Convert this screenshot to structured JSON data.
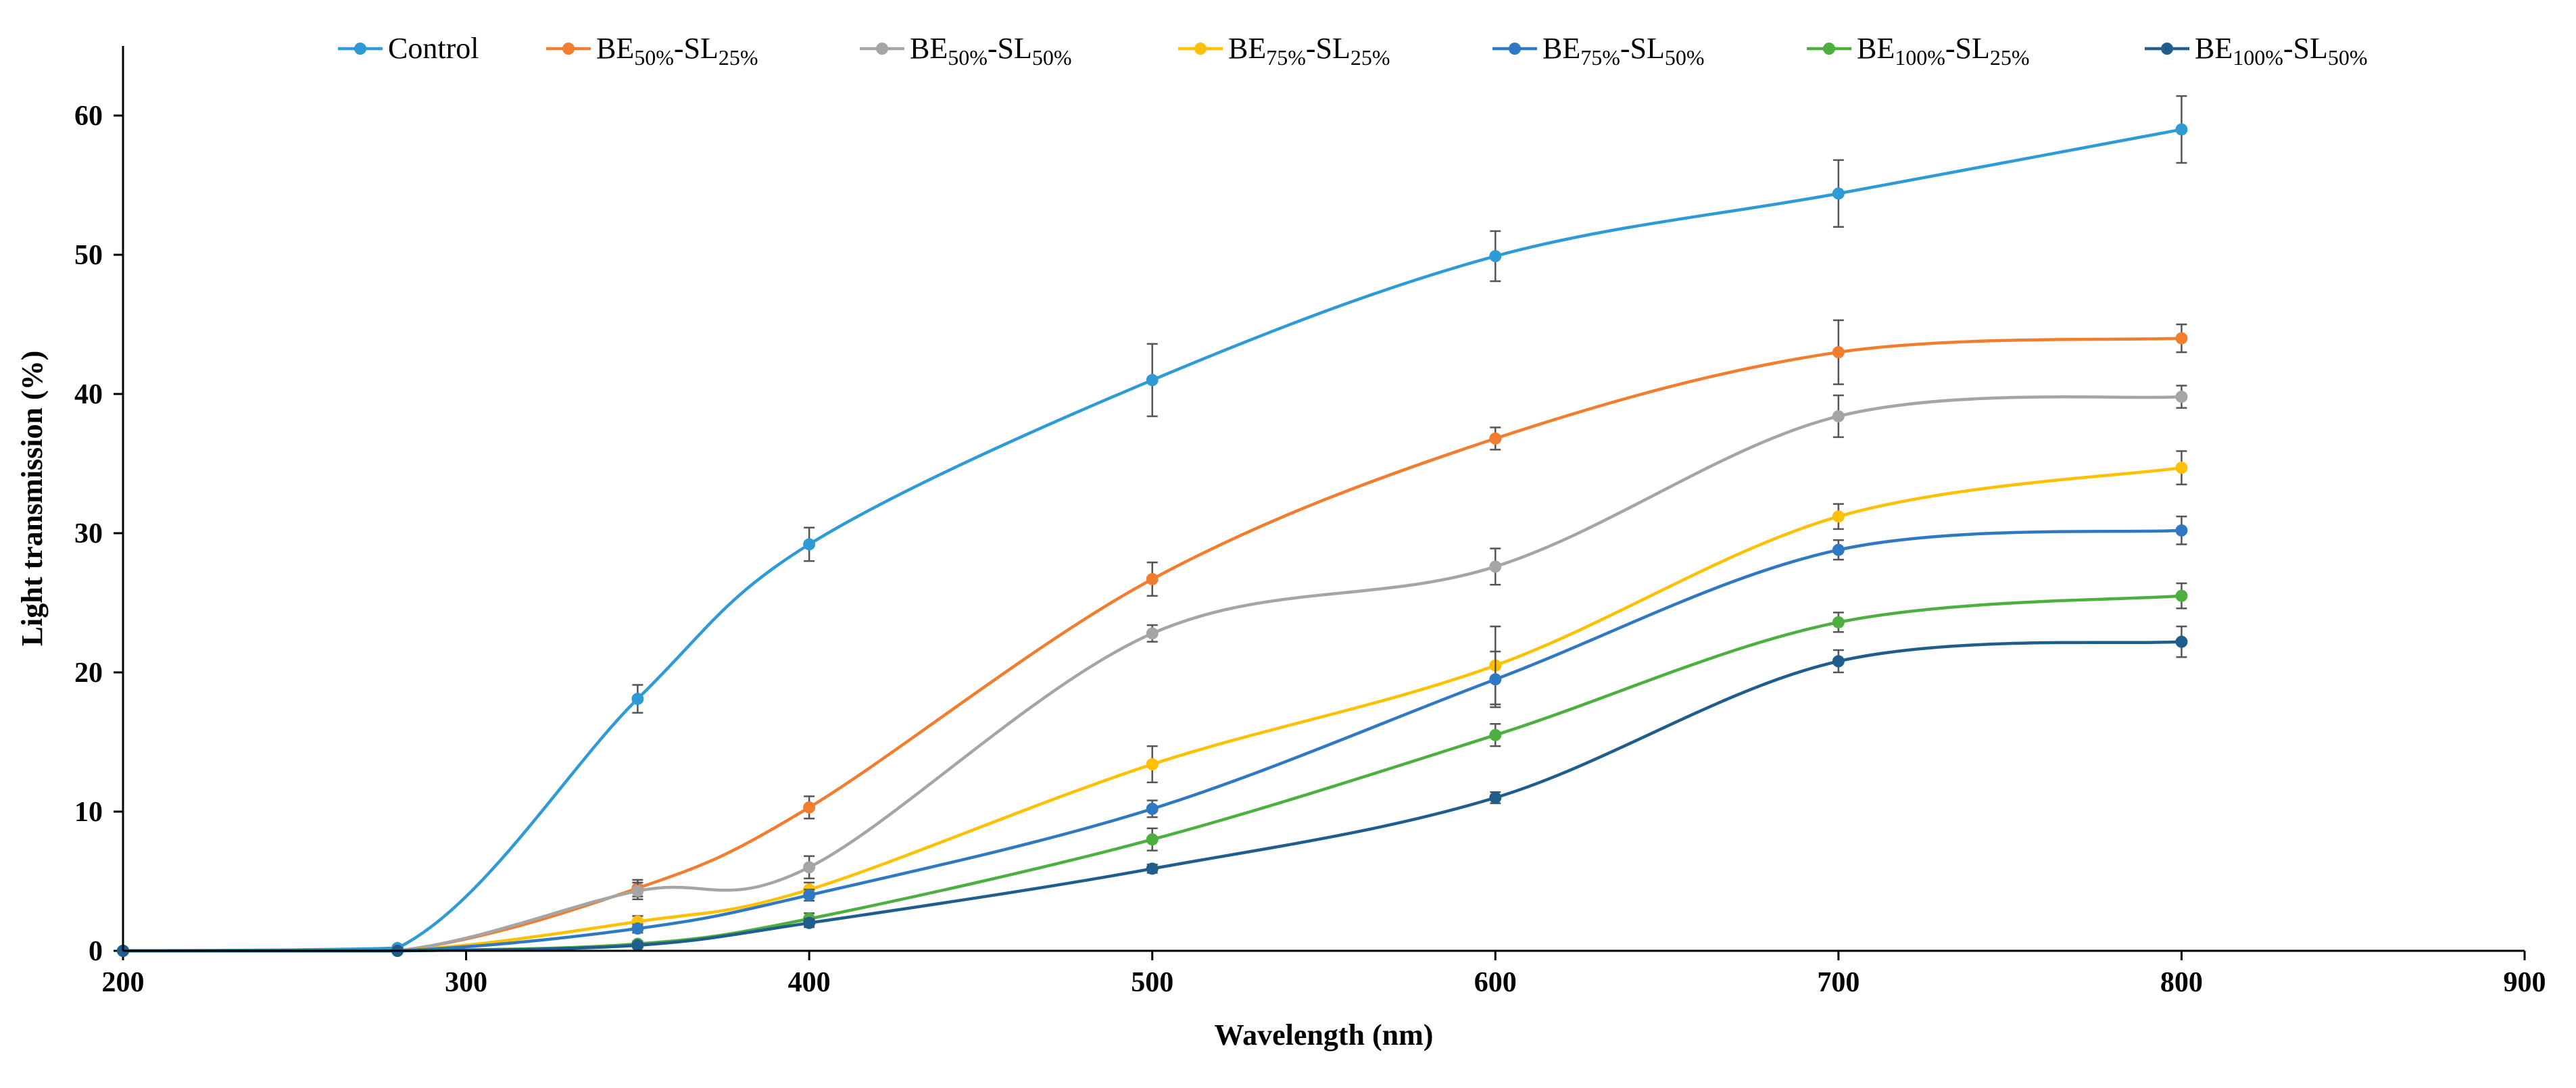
{
  "chart_data": {
    "type": "line",
    "title": "",
    "xlabel": "Wavelength (nm)",
    "ylabel": "Light transmission (%)",
    "xlim": [
      200,
      900
    ],
    "ylim": [
      0,
      65
    ],
    "xticks": [
      200,
      300,
      400,
      500,
      600,
      700,
      800,
      900
    ],
    "yticks": [
      0,
      10,
      20,
      30,
      40,
      50,
      60
    ],
    "legend_position": "top",
    "x": [
      200,
      280,
      350,
      400,
      500,
      600,
      700,
      800
    ],
    "series": [
      {
        "name": "Control",
        "color": "#2E9BD6",
        "legend": {
          "base": "Control",
          "parts": []
        },
        "values": [
          0,
          0.2,
          18.1,
          29.2,
          41.0,
          49.9,
          54.4,
          59.0
        ],
        "errors": [
          0,
          0,
          1.0,
          1.2,
          2.6,
          1.8,
          2.4,
          2.4
        ]
      },
      {
        "name": "BE50%-SL25%",
        "color": "#F37D2E",
        "legend": {
          "base": "BE",
          "parts": [
            {
              "sub": "50%",
              "text": "-SL"
            },
            {
              "sub": "25%",
              "text": ""
            }
          ]
        },
        "values": [
          0,
          0,
          4.5,
          10.3,
          26.7,
          36.8,
          43.0,
          44.0
        ],
        "errors": [
          0,
          0,
          0.6,
          0.8,
          1.2,
          0.8,
          2.3,
          1.0
        ]
      },
      {
        "name": "BE50%-SL50%",
        "color": "#A5A5A5",
        "legend": {
          "base": "BE",
          "parts": [
            {
              "sub": "50%",
              "text": "-SL"
            },
            {
              "sub": "50%",
              "text": ""
            }
          ]
        },
        "values": [
          0,
          0,
          4.3,
          6.0,
          22.8,
          27.6,
          38.4,
          39.8
        ],
        "errors": [
          0,
          0,
          0.6,
          0.8,
          0.6,
          1.3,
          1.5,
          0.8
        ]
      },
      {
        "name": "BE75%-SL25%",
        "color": "#FFC000",
        "legend": {
          "base": "BE",
          "parts": [
            {
              "sub": "75%",
              "text": "-SL"
            },
            {
              "sub": "25%",
              "text": ""
            }
          ]
        },
        "values": [
          0,
          0,
          2.1,
          4.4,
          13.4,
          20.5,
          31.2,
          34.7
        ],
        "errors": [
          0,
          0,
          0.4,
          0.5,
          1.3,
          2.8,
          0.9,
          1.2
        ]
      },
      {
        "name": "BE75%-SL50%",
        "color": "#2F78C2",
        "legend": {
          "base": "BE",
          "parts": [
            {
              "sub": "75%",
              "text": "-SL"
            },
            {
              "sub": "50%",
              "text": ""
            }
          ]
        },
        "values": [
          0,
          0,
          1.6,
          4.0,
          10.2,
          19.5,
          28.8,
          30.2
        ],
        "errors": [
          0,
          0,
          0.3,
          0.4,
          0.6,
          2.0,
          0.7,
          1.0
        ]
      },
      {
        "name": "BE100%-SL25%",
        "color": "#4CAF3F",
        "legend": {
          "base": "BE",
          "parts": [
            {
              "sub": "100%",
              "text": "-SL"
            },
            {
              "sub": "25%",
              "text": ""
            }
          ]
        },
        "values": [
          0,
          0,
          0.5,
          2.3,
          8.0,
          15.5,
          23.6,
          25.5
        ],
        "errors": [
          0,
          0,
          0.2,
          0.4,
          0.8,
          0.8,
          0.7,
          0.9
        ]
      },
      {
        "name": "BE100%-SL50%",
        "color": "#1F5E8C",
        "legend": {
          "base": "BE",
          "parts": [
            {
              "sub": "100%",
              "text": "-SL"
            },
            {
              "sub": "50%",
              "text": ""
            }
          ]
        },
        "values": [
          0,
          0,
          0.4,
          2.0,
          5.9,
          11.0,
          20.8,
          22.2
        ],
        "errors": [
          0,
          0,
          0.2,
          0.3,
          0.3,
          0.4,
          0.8,
          1.1
        ]
      }
    ]
  }
}
